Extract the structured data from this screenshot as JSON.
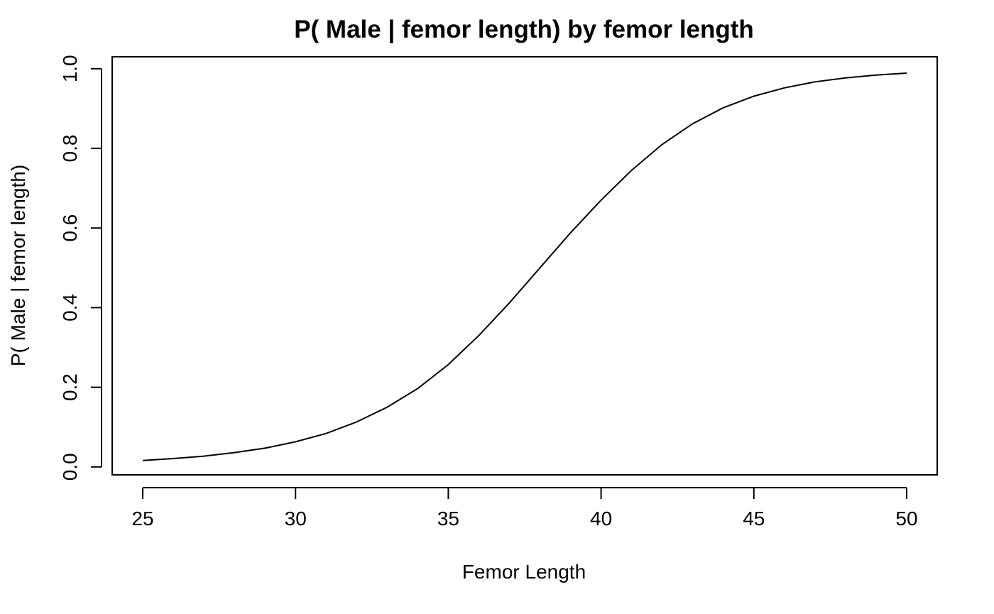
{
  "chart_data": {
    "type": "line",
    "title": "P( Male | femor length) by femor length",
    "xlabel": "Femor Length",
    "ylabel": "P( Male | femor length)",
    "xlim": [
      24,
      51
    ],
    "ylim": [
      -0.02,
      1.03
    ],
    "xticks": [
      25,
      30,
      35,
      40,
      45,
      50
    ],
    "yticks": [
      0.0,
      0.2,
      0.4,
      0.6,
      0.8,
      1.0
    ],
    "ytick_labels": [
      "0.0",
      "0.2",
      "0.4",
      "0.6",
      "0.8",
      "1.0"
    ],
    "grid": false,
    "series": [
      {
        "x": [
          25,
          26,
          27,
          28,
          29,
          30,
          31,
          32,
          33,
          34,
          35,
          36,
          37,
          38,
          39,
          40,
          41,
          42,
          43,
          44,
          45,
          46,
          47,
          48,
          49,
          50
        ],
        "y": [
          0.016,
          0.021,
          0.027,
          0.036,
          0.047,
          0.063,
          0.084,
          0.113,
          0.15,
          0.197,
          0.257,
          0.33,
          0.412,
          0.5,
          0.588,
          0.67,
          0.745,
          0.81,
          0.862,
          0.902,
          0.931,
          0.952,
          0.967,
          0.977,
          0.984,
          0.989
        ]
      }
    ]
  }
}
